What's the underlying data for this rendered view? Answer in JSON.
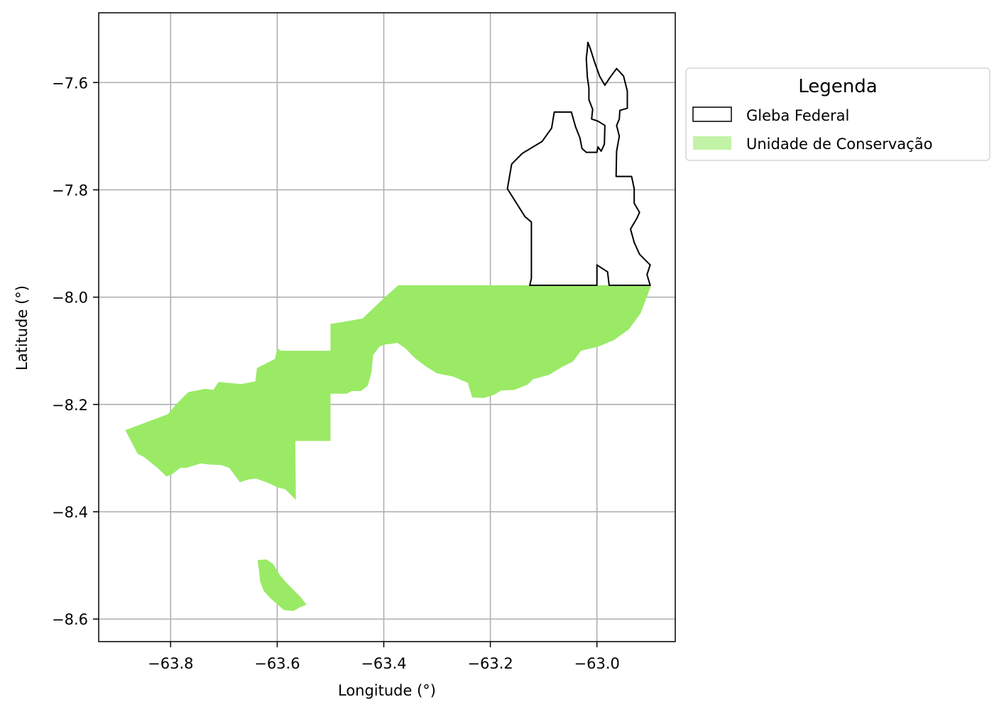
{
  "chart_data": {
    "type": "map",
    "xlabel": "Longitude (°)",
    "ylabel": "Latitude (°)",
    "xlim": [
      -63.935,
      -62.853
    ],
    "ylim": [
      -8.642,
      -7.47
    ],
    "x_ticks": [
      -63.8,
      -63.6,
      -63.4,
      -63.2,
      -63.0
    ],
    "y_ticks": [
      -7.6,
      -7.8,
      -8.0,
      -8.2,
      -8.4,
      -8.6
    ],
    "x_tick_labels": [
      "−63.8",
      "−63.6",
      "−63.4",
      "−63.2",
      "−63.0"
    ],
    "y_tick_labels": [
      "−7.6",
      "−7.8",
      "−8.0",
      "−8.2",
      "−8.4",
      "−8.6"
    ],
    "grid": true,
    "legend": {
      "title": "Legenda",
      "placement": "outside-upper-right",
      "entries": [
        {
          "label": "Gleba Federal",
          "style": "outline",
          "edge_color": "#000000",
          "face_color": "none"
        },
        {
          "label": "Unidade de Conservação",
          "style": "fill",
          "face_color": "#c3f3a6"
        }
      ]
    },
    "layers": [
      {
        "name": "Unidade de Conservação",
        "fill": "#9aea66",
        "polygons": [
          [
            [
              -63.885,
              -8.248
            ],
            [
              -63.805,
              -8.218
            ],
            [
              -63.79,
              -8.2
            ],
            [
              -63.767,
              -8.177
            ],
            [
              -63.735,
              -8.171
            ],
            [
              -63.72,
              -8.173
            ],
            [
              -63.71,
              -8.158
            ],
            [
              -63.668,
              -8.162
            ],
            [
              -63.641,
              -8.157
            ],
            [
              -63.638,
              -8.132
            ],
            [
              -63.604,
              -8.115
            ],
            [
              -63.6,
              -8.094
            ],
            [
              -63.594,
              -8.1
            ],
            [
              -63.5,
              -8.1
            ],
            [
              -63.5,
              -8.05
            ],
            [
              -63.44,
              -8.04
            ],
            [
              -63.398,
              -8.0
            ],
            [
              -63.373,
              -7.978
            ],
            [
              -62.898,
              -7.978
            ],
            [
              -62.918,
              -8.03
            ],
            [
              -62.94,
              -8.06
            ],
            [
              -62.968,
              -8.08
            ],
            [
              -62.997,
              -8.092
            ],
            [
              -63.03,
              -8.1
            ],
            [
              -63.045,
              -8.12
            ],
            [
              -63.065,
              -8.13
            ],
            [
              -63.09,
              -8.145
            ],
            [
              -63.12,
              -8.153
            ],
            [
              -63.13,
              -8.163
            ],
            [
              -63.155,
              -8.173
            ],
            [
              -63.18,
              -8.174
            ],
            [
              -63.193,
              -8.182
            ],
            [
              -63.212,
              -8.188
            ],
            [
              -63.234,
              -8.187
            ],
            [
              -63.24,
              -8.168
            ],
            [
              -63.242,
              -8.16
            ],
            [
              -63.27,
              -8.148
            ],
            [
              -63.3,
              -8.142
            ],
            [
              -63.32,
              -8.13
            ],
            [
              -63.34,
              -8.115
            ],
            [
              -63.36,
              -8.095
            ],
            [
              -63.375,
              -8.085
            ],
            [
              -63.385,
              -8.087
            ],
            [
              -63.397,
              -8.088
            ],
            [
              -63.408,
              -8.092
            ],
            [
              -63.42,
              -8.108
            ],
            [
              -63.423,
              -8.14
            ],
            [
              -63.43,
              -8.165
            ],
            [
              -63.443,
              -8.175
            ],
            [
              -63.46,
              -8.175
            ],
            [
              -63.47,
              -8.18
            ],
            [
              -63.487,
              -8.18
            ],
            [
              -63.5,
              -8.18
            ],
            [
              -63.5,
              -8.268
            ],
            [
              -63.566,
              -8.268
            ],
            [
              -63.565,
              -8.378
            ],
            [
              -63.575,
              -8.368
            ],
            [
              -63.585,
              -8.358
            ],
            [
              -63.598,
              -8.355
            ],
            [
              -63.62,
              -8.345
            ],
            [
              -63.64,
              -8.338
            ],
            [
              -63.655,
              -8.34
            ],
            [
              -63.67,
              -8.345
            ],
            [
              -63.69,
              -8.318
            ],
            [
              -63.705,
              -8.313
            ],
            [
              -63.727,
              -8.312
            ],
            [
              -63.744,
              -8.31
            ],
            [
              -63.77,
              -8.318
            ],
            [
              -63.782,
              -8.318
            ],
            [
              -63.797,
              -8.33
            ],
            [
              -63.808,
              -8.334
            ],
            [
              -63.825,
              -8.318
            ],
            [
              -63.85,
              -8.298
            ],
            [
              -63.862,
              -8.292
            ]
          ],
          [
            [
              -63.637,
              -8.49
            ],
            [
              -63.634,
              -8.51
            ],
            [
              -63.632,
              -8.53
            ],
            [
              -63.625,
              -8.548
            ],
            [
              -63.612,
              -8.562
            ],
            [
              -63.597,
              -8.575
            ],
            [
              -63.588,
              -8.583
            ],
            [
              -63.57,
              -8.585
            ],
            [
              -63.557,
              -8.578
            ],
            [
              -63.545,
              -8.573
            ],
            [
              -63.557,
              -8.558
            ],
            [
              -63.57,
              -8.545
            ],
            [
              -63.585,
              -8.53
            ],
            [
              -63.595,
              -8.518
            ],
            [
              -63.608,
              -8.497
            ],
            [
              -63.62,
              -8.489
            ]
          ]
        ]
      },
      {
        "name": "Gleba Federal",
        "stroke": "#000000",
        "polygons": [
          [
            [
              -63.017,
              -7.525
            ],
            [
              -63.012,
              -7.538
            ],
            [
              -63.005,
              -7.56
            ],
            [
              -62.995,
              -7.588
            ],
            [
              -62.985,
              -7.605
            ],
            [
              -62.975,
              -7.59
            ],
            [
              -62.963,
              -7.574
            ],
            [
              -62.95,
              -7.588
            ],
            [
              -62.943,
              -7.616
            ],
            [
              -62.943,
              -7.648
            ],
            [
              -62.957,
              -7.652
            ],
            [
              -62.958,
              -7.668
            ],
            [
              -62.963,
              -7.68
            ],
            [
              -62.958,
              -7.7
            ],
            [
              -62.963,
              -7.728
            ],
            [
              -62.964,
              -7.775
            ],
            [
              -62.935,
              -7.775
            ],
            [
              -62.93,
              -7.798
            ],
            [
              -62.93,
              -7.825
            ],
            [
              -62.92,
              -7.842
            ],
            [
              -62.925,
              -7.853
            ],
            [
              -62.937,
              -7.873
            ],
            [
              -62.93,
              -7.898
            ],
            [
              -62.92,
              -7.92
            ],
            [
              -62.9,
              -7.94
            ],
            [
              -62.906,
              -7.958
            ],
            [
              -62.9,
              -7.978
            ],
            [
              -62.977,
              -7.978
            ],
            [
              -62.98,
              -7.953
            ],
            [
              -63.0,
              -7.94
            ],
            [
              -63.0,
              -7.978
            ],
            [
              -63.126,
              -7.978
            ],
            [
              -63.123,
              -7.965
            ],
            [
              -63.123,
              -7.86
            ],
            [
              -63.135,
              -7.85
            ],
            [
              -63.168,
              -7.798
            ],
            [
              -63.16,
              -7.752
            ],
            [
              -63.14,
              -7.732
            ],
            [
              -63.103,
              -7.71
            ],
            [
              -63.085,
              -7.685
            ],
            [
              -63.08,
              -7.655
            ],
            [
              -63.048,
              -7.655
            ],
            [
              -63.04,
              -7.683
            ],
            [
              -63.032,
              -7.703
            ],
            [
              -63.028,
              -7.723
            ],
            [
              -63.02,
              -7.73
            ],
            [
              -63.0,
              -7.73
            ],
            [
              -62.998,
              -7.72
            ],
            [
              -62.992,
              -7.728
            ],
            [
              -62.986,
              -7.715
            ],
            [
              -62.985,
              -7.68
            ],
            [
              -62.998,
              -7.672
            ],
            [
              -63.01,
              -7.668
            ],
            [
              -63.008,
              -7.65
            ],
            [
              -63.015,
              -7.632
            ],
            [
              -63.015,
              -7.61
            ],
            [
              -63.018,
              -7.59
            ],
            [
              -63.02,
              -7.555
            ],
            [
              -63.018,
              -7.538
            ]
          ]
        ]
      }
    ]
  }
}
